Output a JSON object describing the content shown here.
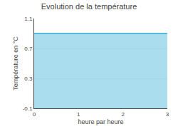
{
  "chart_data": {
    "type": "area",
    "title": "Evolution de la température",
    "xlabel": "heure par heure",
    "ylabel": "Température en °C",
    "x": [
      0,
      3
    ],
    "values": [
      0.9,
      0.9
    ],
    "color": "#55bbdd",
    "xlim": [
      0,
      3
    ],
    "xticks": [
      0,
      1,
      2,
      3
    ],
    "ylim": [
      -0.1,
      1.1
    ],
    "yticks": [
      -0.1,
      0.3,
      0.7,
      1.1
    ],
    "grid": "y"
  }
}
